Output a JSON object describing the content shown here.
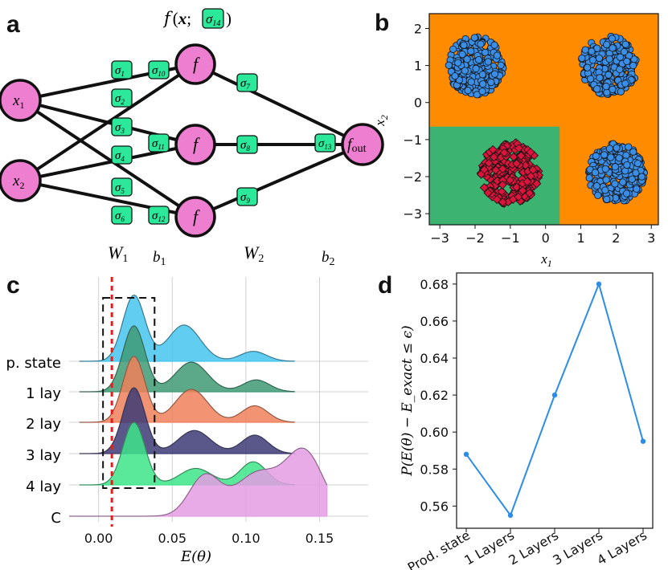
{
  "panel_labels": {
    "a": "a",
    "b": "b",
    "c": "c",
    "d": "d"
  },
  "colors": {
    "node_fill": "#ee7ed0",
    "param_fill": "#2be89a",
    "decision_orange": "#ff8c00",
    "decision_green": "#3cb371",
    "class_blue": "#3a8ee6",
    "class_red": "#dc143c",
    "line_blue": "#2b8de8",
    "threshold": "#e02020"
  },
  "network": {
    "input_nodes": [
      {
        "var": "x",
        "sub": "1"
      },
      {
        "var": "x",
        "sub": "2"
      }
    ],
    "hidden_nodes": [
      "f",
      "f",
      "f"
    ],
    "output_node": {
      "var": "f",
      "sub": "out"
    },
    "params": [
      {
        "sym": "σ",
        "sub": "1"
      },
      {
        "sym": "σ",
        "sub": "2"
      },
      {
        "sym": "σ",
        "sub": "3"
      },
      {
        "sym": "σ",
        "sub": "4"
      },
      {
        "sym": "σ",
        "sub": "5"
      },
      {
        "sym": "σ",
        "sub": "6"
      },
      {
        "sym": "σ",
        "sub": "7"
      },
      {
        "sym": "σ",
        "sub": "8"
      },
      {
        "sym": "σ",
        "sub": "9"
      },
      {
        "sym": "σ",
        "sub": "10"
      },
      {
        "sym": "σ",
        "sub": "11"
      },
      {
        "sym": "σ",
        "sub": "12"
      },
      {
        "sym": "σ",
        "sub": "13"
      }
    ],
    "header": {
      "f": "f",
      "open": "(",
      "x": "x",
      "semi": ";",
      "sym": "σ",
      "sub": "14",
      "close": ")"
    },
    "bottom_labels": [
      {
        "var": "W",
        "sub": "1"
      },
      {
        "var": "b",
        "sub": "1"
      },
      {
        "var": "W",
        "sub": "2"
      },
      {
        "var": "b",
        "sub": "2"
      }
    ]
  },
  "chart_data": [
    {
      "panel": "b",
      "type": "scatter",
      "xlabel": "x",
      "xlabel_sub": "1",
      "ylabel": "x",
      "ylabel_sub": "2",
      "xlim": [
        -3.3,
        3.2
      ],
      "ylim": [
        -3.3,
        2.4
      ],
      "xticks": [
        "−3",
        "−2",
        "−1",
        "0",
        "1",
        "2",
        "3"
      ],
      "xtick_values": [
        -3,
        -2,
        -1,
        0,
        1,
        2,
        3
      ],
      "yticks": [
        "−3",
        "−2",
        "−1",
        "0",
        "1",
        "2"
      ],
      "ytick_values": [
        -3,
        -2,
        -1,
        0,
        1,
        2
      ],
      "decision_regions": [
        {
          "label": "class 0 region",
          "color": "#3cb371",
          "x": [
            -3.3,
            0.4
          ],
          "y": [
            -3.3,
            -0.65
          ]
        },
        {
          "label": "class 1 region",
          "color": "#ff8c00",
          "rest": true
        }
      ],
      "clusters": [
        {
          "class": "blue",
          "marker": "circle",
          "center": [
            -2.0,
            1.0
          ],
          "radius": 0.8
        },
        {
          "class": "blue",
          "marker": "circle",
          "center": [
            1.8,
            1.0
          ],
          "radius": 0.8
        },
        {
          "class": "blue",
          "marker": "circle",
          "center": [
            2.0,
            -1.9
          ],
          "radius": 0.8
        },
        {
          "class": "red",
          "marker": "diamond",
          "center": [
            -1.0,
            -1.9
          ],
          "radius": 0.85
        }
      ]
    },
    {
      "panel": "c",
      "type": "area",
      "title": "",
      "xlabel": "E(θ)",
      "xlim": [
        -0.02,
        0.183
      ],
      "xticks": [
        "0.00",
        "0.05",
        "0.10",
        "0.15"
      ],
      "xtick_values": [
        0.0,
        0.05,
        0.1,
        0.15
      ],
      "threshold": 0.009,
      "highlight_box_x": [
        0.003,
        0.038
      ],
      "series": [
        {
          "name": "p. state",
          "color": "#44c4ee",
          "peaks": [
            [
              0.024,
              1.0
            ],
            [
              0.058,
              0.55
            ],
            [
              0.105,
              0.15
            ]
          ],
          "range": [
            -0.013,
            0.133
          ]
        },
        {
          "name": "1 lay",
          "color": "#3e9a74",
          "peaks": [
            [
              0.024,
              1.0
            ],
            [
              0.063,
              0.45
            ],
            [
              0.107,
              0.18
            ]
          ],
          "range": [
            -0.013,
            0.133
          ]
        },
        {
          "name": "2 lay",
          "color": "#f0805a",
          "peaks": [
            [
              0.024,
              1.0
            ],
            [
              0.063,
              0.5
            ],
            [
              0.106,
              0.25
            ]
          ],
          "range": [
            -0.013,
            0.133
          ]
        },
        {
          "name": "3 lay",
          "color": "#3d3b75",
          "peaks": [
            [
              0.024,
              1.0
            ],
            [
              0.065,
              0.35
            ],
            [
              0.106,
              0.28
            ]
          ],
          "range": [
            -0.013,
            0.133
          ]
        },
        {
          "name": "4 lay",
          "color": "#3de48a",
          "peaks": [
            [
              0.024,
              0.95
            ],
            [
              0.066,
              0.25
            ],
            [
              0.105,
              0.35
            ]
          ],
          "range": [
            -0.013,
            0.133
          ]
        },
        {
          "name": "C",
          "color": "#e49ce4",
          "peaks": [
            [
              0.072,
              0.6
            ],
            [
              0.108,
              0.65
            ],
            [
              0.14,
              0.95
            ]
          ],
          "range": [
            -0.02,
            0.155
          ]
        }
      ]
    },
    {
      "panel": "d",
      "type": "line",
      "ylabel": "P(E(θ) − E_exact ≤ ϵ)",
      "categories": [
        "Prod. state",
        "1 Layers",
        "2 Layers",
        "3 Layers",
        "4 Layers"
      ],
      "values": [
        0.588,
        0.555,
        0.62,
        0.68,
        0.595
      ],
      "ylim": [
        0.548,
        0.686
      ],
      "yticks": [
        "0.56",
        "0.58",
        "0.60",
        "0.62",
        "0.64",
        "0.66",
        "0.68"
      ],
      "ytick_values": [
        0.56,
        0.58,
        0.6,
        0.62,
        0.64,
        0.66,
        0.68
      ]
    }
  ]
}
